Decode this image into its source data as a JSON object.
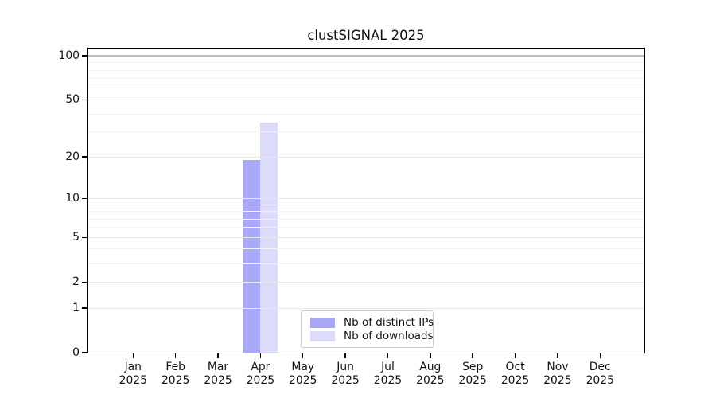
{
  "title": "clustSIGNAL 2025",
  "chart_data": {
    "type": "bar",
    "title": "clustSIGNAL 2025",
    "categories": [
      "Jan",
      "Feb",
      "Mar",
      "Apr",
      "May",
      "Jun",
      "Jul",
      "Aug",
      "Sep",
      "Oct",
      "Nov",
      "Dec"
    ],
    "year_label": "2025",
    "series": [
      {
        "name": "Nb of distinct IPs",
        "color": "#a8a8f6",
        "values": [
          0,
          0,
          0,
          19,
          0,
          0,
          0,
          0,
          0,
          0,
          0,
          0
        ]
      },
      {
        "name": "Nb of downloads",
        "color": "#dcdcf8",
        "values": [
          0,
          0,
          0,
          35,
          0,
          0,
          0,
          0,
          0,
          0,
          0,
          0
        ]
      }
    ],
    "yscale": "log1p",
    "ylim": [
      0,
      100
    ],
    "y_major_ticks": [
      0,
      1,
      2,
      5,
      10,
      20,
      50,
      100
    ],
    "y_minor_gridlines": [
      3,
      4,
      6,
      7,
      8,
      9,
      30,
      40,
      60,
      70,
      80,
      90
    ],
    "grid": true,
    "legend_position": "bottom-center"
  },
  "colors": {
    "grid_minor": "#f3f3f3",
    "grid_major": "#e8e8e8",
    "grid_emph": "#bdbdbd",
    "spine": "#000000"
  }
}
